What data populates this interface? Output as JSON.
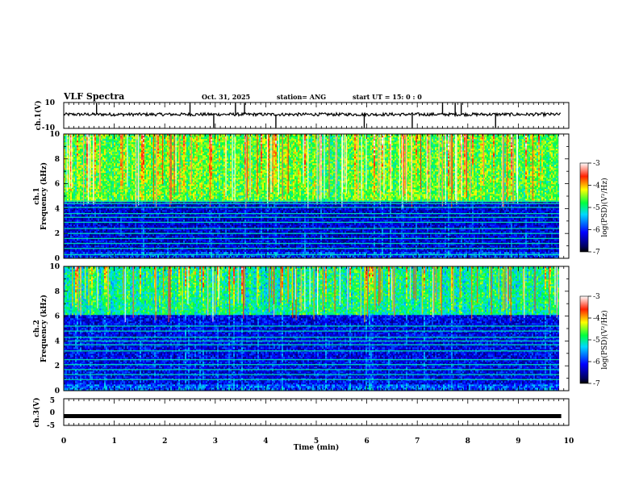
{
  "header": {
    "title": "VLF Spectra",
    "date": "Oct. 31, 2025",
    "station": "station= ANG",
    "start": "start  UT =   15: 0  : 0"
  },
  "colors": {
    "trace": "#000000",
    "frame": "#000000",
    "background": "#ffffff"
  },
  "chart_data": [
    {
      "type": "line",
      "panel": "ch1-waveform",
      "title": "",
      "ylabel": "ch.1(V)",
      "yticklabels": [
        "10",
        "-10"
      ],
      "ylim": [
        -10,
        10
      ],
      "xlim": [
        0,
        10
      ],
      "baseline": 0.8,
      "noise_amplitude": 1.2,
      "spikes_x": [
        0.65,
        2.5,
        2.97,
        3.4,
        3.58,
        4.2,
        5.95,
        6.9,
        7.5,
        7.75,
        7.87,
        8.55
      ]
    },
    {
      "type": "heatmap",
      "panel": "ch1-spectrogram",
      "ylabel": "ch.1\nFrequency (kHz)",
      "ylabel_line1": "ch.1",
      "ylabel_line2": "Frequency (kHz)",
      "yticklabels": [
        "10",
        "8",
        "6",
        "4",
        "2",
        "0"
      ],
      "ylim": [
        0,
        10
      ],
      "xlim": [
        0,
        9.85
      ],
      "zlim": [
        -7,
        -3
      ],
      "colorbar_label": "log(PSD)(V²/Hz)",
      "colorbar_ticks": [
        "-3",
        "-4",
        "-5",
        "-6",
        "-7"
      ],
      "description_levels": {
        "above_4.5kHz": -4.6,
        "below_4.5kHz": -6.3
      },
      "lines_kHz": [
        0.3,
        0.8,
        1.2,
        1.6,
        2.0,
        2.4,
        2.9,
        3.3,
        3.6,
        4.1,
        4.4,
        4.6
      ]
    },
    {
      "type": "heatmap",
      "panel": "ch2-spectrogram",
      "ylabel": "ch.2\nFrequency (kHz)",
      "ylabel_line1": "ch.2",
      "ylabel_line2": "Frequency (kHz)",
      "yticklabels": [
        "10",
        "8",
        "6",
        "4",
        "2",
        "0"
      ],
      "ylim": [
        0,
        10
      ],
      "xlim": [
        0,
        9.85
      ],
      "zlim": [
        -7,
        -3
      ],
      "colorbar_label": "log(PSD)(V²/Hz)",
      "colorbar_ticks": [
        "-3",
        "-4",
        "-5",
        "-6",
        "-7"
      ],
      "description_levels": {
        "above_6kHz": -5.0,
        "below_6kHz": -6.2
      },
      "lines_kHz": [
        0.9,
        1.3,
        1.7,
        2.1,
        2.5,
        3.2,
        3.7,
        4.0,
        4.3,
        4.8,
        5.2
      ]
    },
    {
      "type": "line",
      "panel": "ch3-waveform",
      "ylabel": "ch.3(V)",
      "yticklabels": [
        "5",
        "0",
        "-5"
      ],
      "ylim": [
        -5,
        5
      ],
      "xlim": [
        0,
        9.85
      ],
      "value": -1.5
    }
  ],
  "xaxis": {
    "label": "Time  (min)",
    "ticklabels": [
      "0",
      "1",
      "2",
      "3",
      "4",
      "5",
      "6",
      "7",
      "8",
      "9",
      "10"
    ],
    "xlim": [
      0,
      10
    ]
  }
}
